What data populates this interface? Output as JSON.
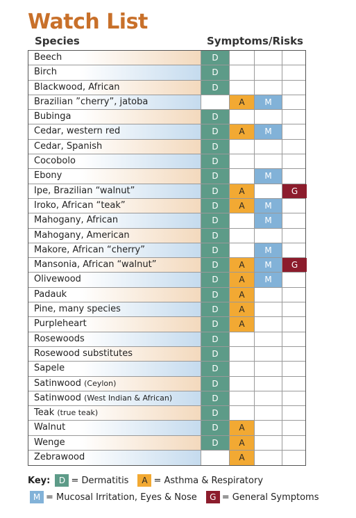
{
  "title": "Watch List",
  "header": {
    "species": "Species",
    "symptoms": "Symptoms/Risks"
  },
  "rows": [
    {
      "species": "Beech",
      "cells": [
        "D",
        null,
        null,
        null
      ]
    },
    {
      "species": "Birch",
      "cells": [
        "D",
        null,
        null,
        null
      ]
    },
    {
      "species": "Blackwood, African",
      "cells": [
        "D",
        null,
        null,
        null
      ]
    },
    {
      "species": "Brazilian ”cherry”, jatoba",
      "cells": [
        null,
        "A",
        "M",
        null
      ]
    },
    {
      "species": "Bubinga",
      "cells": [
        "D",
        null,
        null,
        null
      ]
    },
    {
      "species": "Cedar, western red",
      "cells": [
        "D",
        "A",
        "M",
        null
      ]
    },
    {
      "species": "Cedar, Spanish",
      "cells": [
        "D",
        null,
        null,
        null
      ]
    },
    {
      "species": "Cocobolo",
      "cells": [
        "D",
        null,
        null,
        null
      ]
    },
    {
      "species": "Ebony",
      "cells": [
        "D",
        null,
        "M",
        null
      ]
    },
    {
      "species": "Ipe, Brazilian “walnut”",
      "cells": [
        "D",
        "A",
        null,
        "G"
      ]
    },
    {
      "species": "Iroko, African “teak”",
      "cells": [
        "D",
        "A",
        "M",
        null
      ]
    },
    {
      "species": "Mahogany, African",
      "cells": [
        "D",
        null,
        "M",
        null
      ]
    },
    {
      "species": "Mahogany, American",
      "cells": [
        "D",
        null,
        null,
        null
      ]
    },
    {
      "species": "Makore, African “cherry”",
      "cells": [
        "D",
        null,
        "M",
        null
      ]
    },
    {
      "species": "Mansonia, African “walnut”",
      "cells": [
        "D",
        "A",
        "M",
        "G"
      ]
    },
    {
      "species": "Olivewood",
      "cells": [
        "D",
        "A",
        "M",
        null
      ]
    },
    {
      "species": "Padauk",
      "cells": [
        "D",
        "A",
        null,
        null
      ]
    },
    {
      "species": "Pine, many species",
      "cells": [
        "D",
        "A",
        null,
        null
      ]
    },
    {
      "species": "Purpleheart",
      "cells": [
        "D",
        "A",
        null,
        null
      ]
    },
    {
      "species": "Rosewoods",
      "cells": [
        "D",
        null,
        null,
        null
      ]
    },
    {
      "species": "Rosewood substitutes",
      "cells": [
        "D",
        null,
        null,
        null
      ]
    },
    {
      "species": "Sapele",
      "cells": [
        "D",
        null,
        null,
        null
      ]
    },
    {
      "species": "Satinwood",
      "note": "(Ceylon)",
      "cells": [
        "D",
        null,
        null,
        null
      ]
    },
    {
      "species": "Satinwood",
      "note": "(West Indian & African)",
      "cells": [
        "D",
        null,
        null,
        null
      ]
    },
    {
      "species": "Teak",
      "note": "(true teak)",
      "cells": [
        "D",
        null,
        null,
        null
      ]
    },
    {
      "species": "Walnut",
      "cells": [
        "D",
        "A",
        null,
        null
      ]
    },
    {
      "species": "Wenge",
      "cells": [
        "D",
        "A",
        null,
        null
      ]
    },
    {
      "species": "Zebrawood",
      "cells": [
        null,
        "A",
        null,
        null
      ]
    }
  ],
  "key": {
    "label": "Key:",
    "items": [
      {
        "letter": "D",
        "text": "= Dermatitis"
      },
      {
        "letter": "A",
        "text": "= Asthma & Respiratory"
      },
      {
        "letter": "M",
        "text": "= Mucosal Irritation, Eyes & Nose"
      },
      {
        "letter": "G",
        "text": "= General Symptoms"
      }
    ]
  }
}
